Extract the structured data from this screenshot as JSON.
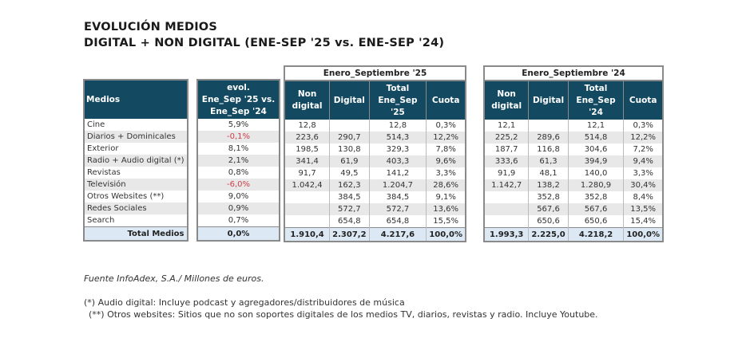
{
  "title1": "EVOLUCIÓN MEDIOS",
  "title2": "DIGITAL + NON DIGITAL (ENE-SEP '25 vs. ENE-SEP '24)",
  "medios_header": "Medios",
  "evol_header": [
    "evol.",
    "Ene_Sep '25 vs.",
    "Ene_Sep '24"
  ],
  "group25": "Enero_Septiembre '25",
  "group24": "Enero_Septiembre '24",
  "cols25": [
    "Non digital",
    "Digital",
    "Total Ene_Sep '25",
    "Cuota"
  ],
  "cols24": [
    "Non digital",
    "Digital",
    "Total Ene_Sep '24",
    "Cuota"
  ],
  "negative_color": "#d0404a",
  "rows": [
    {
      "medio": "Cine",
      "evol": "5,9%",
      "y25": [
        "12,8",
        "",
        "12,8",
        "0,3%"
      ],
      "y24": [
        "12,1",
        "",
        "12,1",
        "0,3%"
      ]
    },
    {
      "medio": "Diarios + Dominicales",
      "evol": "-0,1%",
      "y25": [
        "223,6",
        "290,7",
        "514,3",
        "12,2%"
      ],
      "y24": [
        "225,2",
        "289,6",
        "514,8",
        "12,2%"
      ]
    },
    {
      "medio": "Exterior",
      "evol": "8,1%",
      "y25": [
        "198,5",
        "130,8",
        "329,3",
        "7,8%"
      ],
      "y24": [
        "187,7",
        "116,8",
        "304,6",
        "7,2%"
      ]
    },
    {
      "medio": "Radio + Audio digital (*)",
      "evol": "2,1%",
      "y25": [
        "341,4",
        "61,9",
        "403,3",
        "9,6%"
      ],
      "y24": [
        "333,6",
        "61,3",
        "394,9",
        "9,4%"
      ]
    },
    {
      "medio": "Revistas",
      "evol": "0,8%",
      "y25": [
        "91,7",
        "49,5",
        "141,2",
        "3,3%"
      ],
      "y24": [
        "91,9",
        "48,1",
        "140,0",
        "3,3%"
      ]
    },
    {
      "medio": "Televisión",
      "evol": "-6,0%",
      "y25": [
        "1.042,4",
        "162,3",
        "1.204,7",
        "28,6%"
      ],
      "y24": [
        "1.142,7",
        "138,2",
        "1.280,9",
        "30,4%"
      ]
    },
    {
      "medio": "Otros Websites (**)",
      "evol": "9,0%",
      "y25": [
        "",
        "384,5",
        "384,5",
        "9,1%"
      ],
      "y24": [
        "",
        "352,8",
        "352,8",
        "8,4%"
      ]
    },
    {
      "medio": "Redes Sociales",
      "evol": "0,9%",
      "y25": [
        "",
        "572,7",
        "572,7",
        "13,6%"
      ],
      "y24": [
        "",
        "567,6",
        "567,6",
        "13,5%"
      ]
    },
    {
      "medio": "Search",
      "evol": "0,7%",
      "y25": [
        "",
        "654,8",
        "654,8",
        "15,5%"
      ],
      "y24": [
        "",
        "650,6",
        "650,6",
        "15,4%"
      ]
    }
  ],
  "total": {
    "medio": "Total Medios",
    "evol": "0,0%",
    "y25": [
      "1.910,4",
      "2.307,2",
      "4.217,6",
      "100,0%"
    ],
    "y24": [
      "1.993,3",
      "2.225,0",
      "4.218,2",
      "100,0%"
    ]
  },
  "source": "Fuente InfoAdex, S.A./ Millones de euros.",
  "note1": "(*) Audio digital: Incluye podcast y agregadores/distribuidores de música",
  "note2": "(**) Otros websites: Sitios que no son soportes digitales de los medios TV, diarios, revistas y radio. Incluye Youtube."
}
